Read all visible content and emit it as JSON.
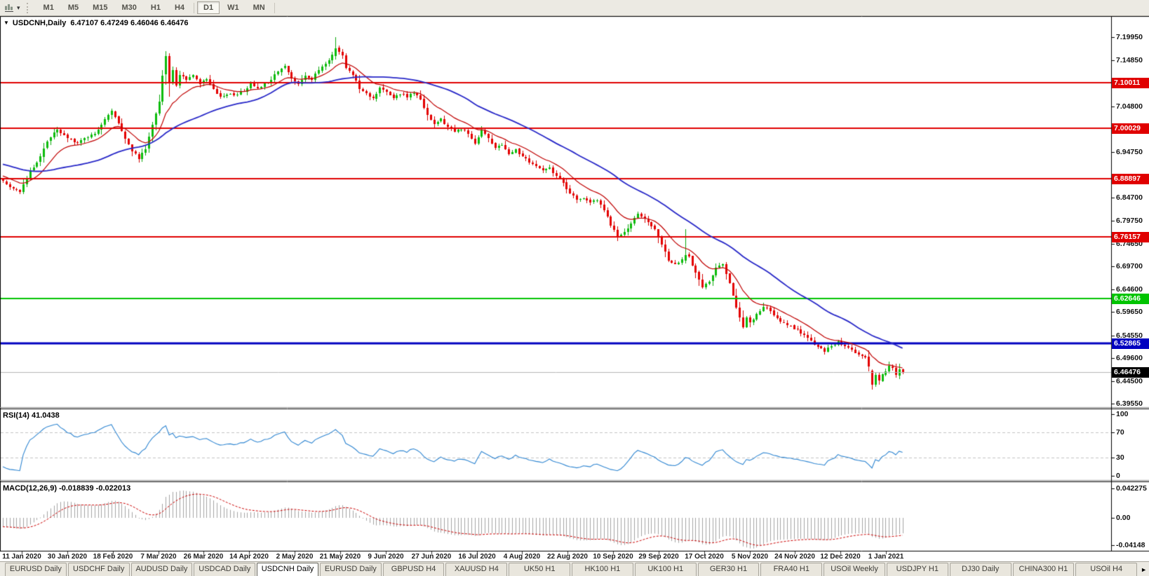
{
  "icons": {
    "toolbar_caret": "▾",
    "title_caret": "▼",
    "tab_scroll": "►"
  },
  "toolbar": {
    "timeframes": [
      "M1",
      "M5",
      "M15",
      "M30",
      "H1",
      "H4",
      "D1",
      "W1",
      "MN"
    ],
    "active_timeframe": "D1"
  },
  "chart": {
    "title_symbol": "USDCNH,Daily",
    "title_ohlc": "6.47107 6.47249 6.46046 6.46476",
    "rsi_label": "RSI(14) 41.0438",
    "macd_label": "MACD(12,26,9) -0.018839 -0.022013"
  },
  "tabs": {
    "items": [
      "EURUSD Daily",
      "USDCHF Daily",
      "AUDUSD Daily",
      "USDCAD Daily",
      "USDCNH Daily",
      "EURUSD Daily",
      "GBPUSD H4",
      "XAUUSD H4",
      "UK50 H1",
      "HK100 H1",
      "UK100 H1",
      "GER30 H1",
      "FRA40 H1",
      "USOil Weekly",
      "USDJPY H1",
      "DJ30 Daily",
      "CHINA300 H1",
      "USOil H4"
    ],
    "active_index": 4
  },
  "chart_data": {
    "type": "candlestick",
    "symbol": "USDCNH",
    "timeframe": "Daily",
    "current_ohlc": {
      "open": 6.47107,
      "high": 6.47249,
      "low": 6.46046,
      "close": 6.46476
    },
    "price_axis_labels": [
      "7.19950",
      "7.14850",
      "7.04800",
      "6.94750",
      "6.84700",
      "6.79750",
      "6.74650",
      "6.69700",
      "6.64600",
      "6.59650",
      "6.54550",
      "6.49600",
      "6.44500",
      "6.39550"
    ],
    "hlines": [
      {
        "value": 7.10011,
        "label": "7.10011",
        "color": "#e00000",
        "width": 2
      },
      {
        "value": 7.00029,
        "label": "7.00029",
        "color": "#e00000",
        "width": 2
      },
      {
        "value": 6.88897,
        "label": "6.88897",
        "color": "#e00000",
        "width": 2
      },
      {
        "value": 6.76157,
        "label": "6.76157",
        "color": "#e00000",
        "width": 2
      },
      {
        "value": 6.62646,
        "label": "6.62646",
        "color": "#00c400",
        "width": 2
      },
      {
        "value": 6.52865,
        "label": "6.52865",
        "color": "#0000c0",
        "width": 3
      }
    ],
    "current_price": {
      "value": 6.46476,
      "label": "6.46476",
      "line_color": "#b6b6b6",
      "label_bg": "#000000"
    },
    "date_labels": [
      "11 Jan 2020",
      "30 Jan 2020",
      "18 Feb 2020",
      "7 Mar 2020",
      "26 Mar 2020",
      "14 Apr 2020",
      "2 May 2020",
      "21 May 2020",
      "9 Jun 2020",
      "27 Jun 2020",
      "16 Jul 2020",
      "4 Aug 2020",
      "22 Aug 2020",
      "10 Sep 2020",
      "29 Sep 2020",
      "17 Oct 2020",
      "5 Nov 2020",
      "24 Nov 2020",
      "12 Dec 2020",
      "1 Jan 2021"
    ],
    "rsi": {
      "period": 14,
      "current": 41.0438,
      "levels": [
        70,
        30
      ],
      "axis_labels": [
        "100",
        "70",
        "30",
        "0"
      ],
      "color": "#2f86d2"
    },
    "macd": {
      "fast": 12,
      "slow": 26,
      "signal": 9,
      "current_macd": -0.018839,
      "current_signal": -0.022013,
      "axis_labels": [
        "0.042275",
        "0.00",
        "-0.04148"
      ],
      "histogram_color": "#a3a3a3",
      "signal_color": "#cc0000"
    },
    "moving_averages": [
      {
        "type": "ema",
        "period": 13,
        "color": "#c00000",
        "width": 1.2
      },
      {
        "type": "sma",
        "period": 40,
        "color": "#2828c8",
        "width": 1.8
      }
    ],
    "candle_colors": {
      "up": "#0aa80a",
      "up_fill": "#0cbc0c",
      "down": "#d40000",
      "down_fill": "#e40000"
    },
    "candles": {
      "seed": 11,
      "bar_count": 266,
      "pre_bars": 55,
      "close_anchors": [
        [
          -55,
          6.985
        ],
        [
          -40,
          6.958
        ],
        [
          -25,
          6.932
        ],
        [
          -12,
          6.908
        ],
        [
          0,
          6.882
        ],
        [
          2,
          6.872
        ],
        [
          5,
          6.862
        ],
        [
          8,
          6.905
        ],
        [
          11,
          6.938
        ],
        [
          13,
          6.972
        ],
        [
          16,
          6.996
        ],
        [
          19,
          6.978
        ],
        [
          22,
          6.968
        ],
        [
          25,
          6.982
        ],
        [
          27,
          6.988
        ],
        [
          30,
          7.02
        ],
        [
          32,
          7.036
        ],
        [
          34,
          7.012
        ],
        [
          36,
          6.978
        ],
        [
          38,
          6.95
        ],
        [
          40,
          6.934
        ],
        [
          42,
          6.955
        ],
        [
          44,
          7.008
        ],
        [
          46,
          7.06
        ],
        [
          47,
          7.112
        ],
        [
          48,
          7.1575
        ],
        [
          49,
          7.1
        ],
        [
          50,
          7.128
        ],
        [
          51,
          7.095
        ],
        [
          52,
          7.118
        ],
        [
          54,
          7.108
        ],
        [
          56,
          7.118
        ],
        [
          58,
          7.098
        ],
        [
          60,
          7.108
        ],
        [
          62,
          7.088
        ],
        [
          64,
          7.068
        ],
        [
          66,
          7.076
        ],
        [
          68,
          7.072
        ],
        [
          71,
          7.082
        ],
        [
          73,
          7.096
        ],
        [
          75,
          7.088
        ],
        [
          77,
          7.097
        ],
        [
          79,
          7.108
        ],
        [
          81,
          7.126
        ],
        [
          83,
          7.136
        ],
        [
          85,
          7.108
        ],
        [
          87,
          7.098
        ],
        [
          89,
          7.116
        ],
        [
          91,
          7.108
        ],
        [
          93,
          7.128
        ],
        [
          95,
          7.14
        ],
        [
          97,
          7.16
        ],
        [
          98,
          7.1755
        ],
        [
          99,
          7.168
        ],
        [
          100,
          7.158
        ],
        [
          101,
          7.132
        ],
        [
          103,
          7.118
        ],
        [
          105,
          7.088
        ],
        [
          107,
          7.076
        ],
        [
          109,
          7.066
        ],
        [
          111,
          7.088
        ],
        [
          113,
          7.078
        ],
        [
          115,
          7.066
        ],
        [
          117,
          7.076
        ],
        [
          119,
          7.068
        ],
        [
          121,
          7.078
        ],
        [
          123,
          7.062
        ],
        [
          125,
          7.03
        ],
        [
          127,
          7.008
        ],
        [
          129,
          7.018
        ],
        [
          131,
          7.002
        ],
        [
          133,
          6.992
        ],
        [
          135,
          6.998
        ],
        [
          137,
          6.986
        ],
        [
          139,
          6.968
        ],
        [
          141,
          6.996
        ],
        [
          143,
          6.978
        ],
        [
          145,
          6.958
        ],
        [
          147,
          6.962
        ],
        [
          149,
          6.946
        ],
        [
          151,
          6.952
        ],
        [
          153,
          6.938
        ],
        [
          155,
          6.926
        ],
        [
          157,
          6.916
        ],
        [
          159,
          6.906
        ],
        [
          161,
          6.912
        ],
        [
          163,
          6.896
        ],
        [
          165,
          6.878
        ],
        [
          167,
          6.856
        ],
        [
          169,
          6.842
        ],
        [
          171,
          6.848
        ],
        [
          173,
          6.836
        ],
        [
          175,
          6.842
        ],
        [
          177,
          6.82
        ],
        [
          179,
          6.788
        ],
        [
          181,
          6.762
        ],
        [
          183,
          6.772
        ],
        [
          185,
          6.792
        ],
        [
          187,
          6.812
        ],
        [
          188,
          6.808
        ],
        [
          190,
          6.792
        ],
        [
          192,
          6.778
        ],
        [
          194,
          6.742
        ],
        [
          196,
          6.712
        ],
        [
          198,
          6.702
        ],
        [
          200,
          6.71
        ],
        [
          202,
          6.72
        ],
        [
          204,
          6.682
        ],
        [
          206,
          6.652
        ],
        [
          208,
          6.662
        ],
        [
          210,
          6.692
        ],
        [
          212,
          6.702
        ],
        [
          214,
          6.662
        ],
        [
          216,
          6.605
        ],
        [
          218,
          6.565
        ],
        [
          219,
          6.582
        ],
        [
          220,
          6.572
        ],
        [
          222,
          6.592
        ],
        [
          224,
          6.608
        ],
        [
          226,
          6.598
        ],
        [
          228,
          6.582
        ],
        [
          230,
          6.572
        ],
        [
          232,
          6.566
        ],
        [
          234,
          6.556
        ],
        [
          236,
          6.546
        ],
        [
          238,
          6.532
        ],
        [
          240,
          6.522
        ],
        [
          242,
          6.512
        ],
        [
          244,
          6.522
        ],
        [
          246,
          6.532
        ],
        [
          248,
          6.522
        ],
        [
          250,
          6.512
        ],
        [
          252,
          6.506
        ],
        [
          254,
          6.496
        ],
        [
          255,
          6.476
        ],
        [
          256,
          6.437
        ],
        [
          257,
          6.459
        ],
        [
          258,
          6.448
        ],
        [
          259,
          6.458
        ],
        [
          260,
          6.468
        ],
        [
          261,
          6.478
        ],
        [
          262,
          6.472
        ],
        [
          263,
          6.458
        ],
        [
          264,
          6.472
        ],
        [
          265,
          6.46476
        ]
      ],
      "overrides": [
        {
          "i": 48,
          "o": 7.118,
          "h": 7.169,
          "l": 7.096,
          "c": 7.1575
        },
        {
          "i": 98,
          "o": 7.158,
          "h": 7.1995,
          "l": 7.15,
          "c": 7.1755
        },
        {
          "i": 201,
          "o": 6.709,
          "h": 6.778,
          "l": 6.702,
          "c": 6.722
        },
        {
          "i": 256,
          "o": 6.468,
          "h": 6.4705,
          "l": 6.4265,
          "c": 6.437
        },
        {
          "i": 257,
          "o": 6.437,
          "h": 6.4635,
          "l": 6.4335,
          "c": 6.459
        },
        {
          "i": 265,
          "o": 6.47107,
          "h": 6.47249,
          "l": 6.46046,
          "c": 6.46476
        }
      ]
    }
  }
}
